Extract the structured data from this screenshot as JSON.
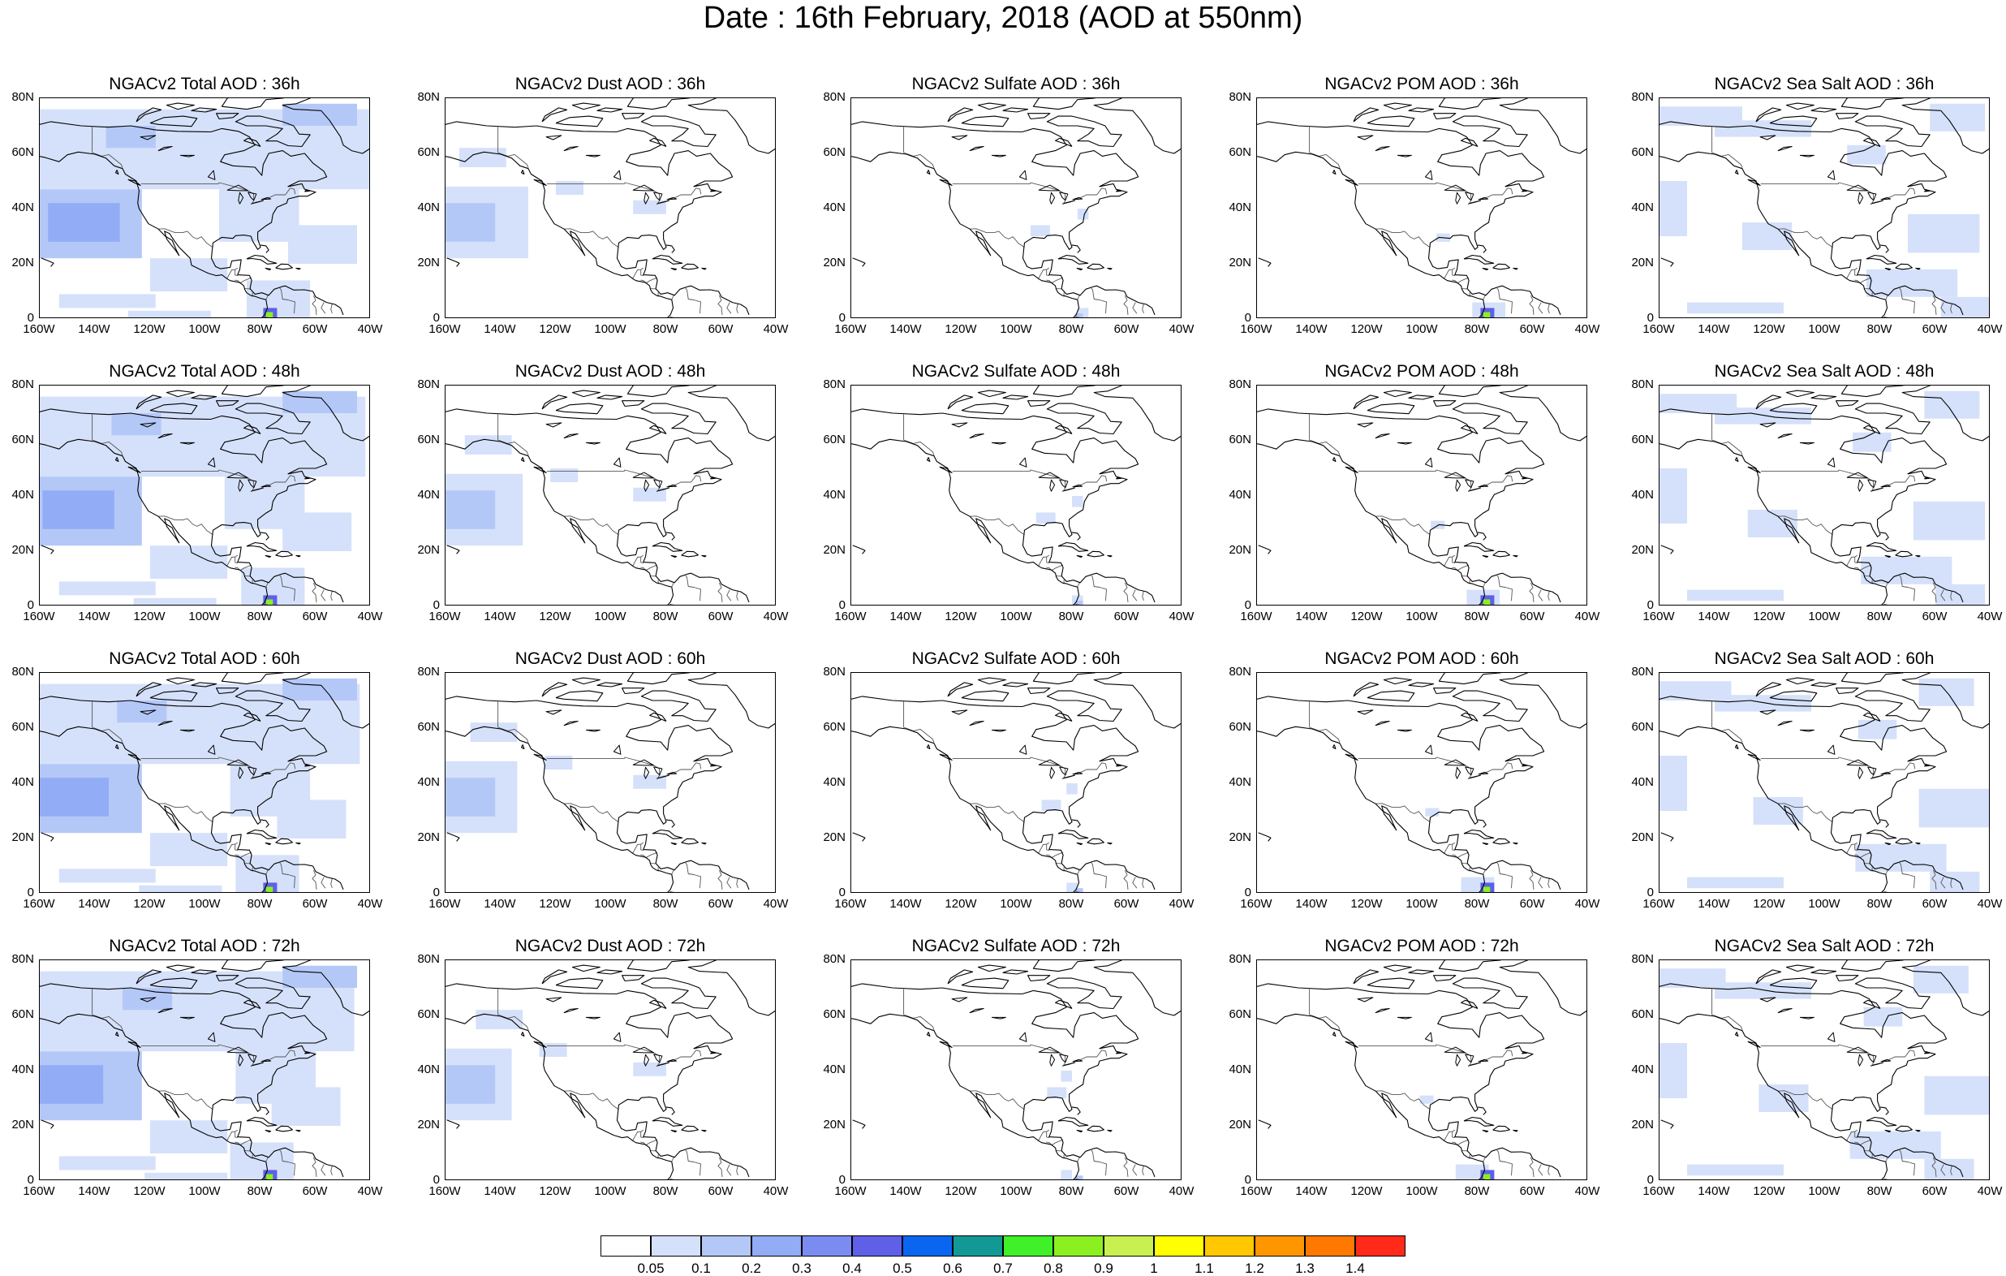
{
  "title": "Date : 16th February, 2018 (AOD at 550nm)",
  "lat_labels": [
    "80N",
    "60N",
    "40N",
    "20N",
    "0"
  ],
  "lon_labels": [
    "160W",
    "140W",
    "120W",
    "100W",
    "80W",
    "60W",
    "40W"
  ],
  "panels": [
    {
      "title": "NGACv2 Total AOD : 36h",
      "species": "total",
      "forecast_hour": 36
    },
    {
      "title": "NGACv2 Dust AOD : 36h",
      "species": "dust",
      "forecast_hour": 36
    },
    {
      "title": "NGACv2 Sulfate AOD : 36h",
      "species": "sulfate",
      "forecast_hour": 36
    },
    {
      "title": "NGACv2 POM AOD : 36h",
      "species": "pom",
      "forecast_hour": 36
    },
    {
      "title": "NGACv2 Sea Salt AOD : 36h",
      "species": "seasalt",
      "forecast_hour": 36
    },
    {
      "title": "NGACv2 Total AOD : 48h",
      "species": "total",
      "forecast_hour": 48
    },
    {
      "title": "NGACv2 Dust AOD : 48h",
      "species": "dust",
      "forecast_hour": 48
    },
    {
      "title": "NGACv2 Sulfate AOD : 48h",
      "species": "sulfate",
      "forecast_hour": 48
    },
    {
      "title": "NGACv2 POM AOD : 48h",
      "species": "pom",
      "forecast_hour": 48
    },
    {
      "title": "NGACv2 Sea Salt AOD : 48h",
      "species": "seasalt",
      "forecast_hour": 48
    },
    {
      "title": "NGACv2 Total AOD : 60h",
      "species": "total",
      "forecast_hour": 60
    },
    {
      "title": "NGACv2 Dust AOD : 60h",
      "species": "dust",
      "forecast_hour": 60
    },
    {
      "title": "NGACv2 Sulfate AOD : 60h",
      "species": "sulfate",
      "forecast_hour": 60
    },
    {
      "title": "NGACv2 POM AOD : 60h",
      "species": "pom",
      "forecast_hour": 60
    },
    {
      "title": "NGACv2 Sea Salt AOD : 60h",
      "species": "seasalt",
      "forecast_hour": 60
    },
    {
      "title": "NGACv2 Total AOD : 72h",
      "species": "total",
      "forecast_hour": 72
    },
    {
      "title": "NGACv2 Dust AOD : 72h",
      "species": "dust",
      "forecast_hour": 72
    },
    {
      "title": "NGACv2 Sulfate AOD : 72h",
      "species": "sulfate",
      "forecast_hour": 72
    },
    {
      "title": "NGACv2 POM AOD : 72h",
      "species": "pom",
      "forecast_hour": 72
    },
    {
      "title": "NGACv2 Sea Salt  AOD : 72h",
      "species": "seasalt",
      "forecast_hour": 72
    }
  ],
  "colorbar": {
    "colors": [
      "#ffffff",
      "#d5e1fa",
      "#b4c8f8",
      "#92acf5",
      "#7b8cf0",
      "#5f5fe8",
      "#0a66f0",
      "#129996",
      "#40f028",
      "#8cf020",
      "#c8f050",
      "#ffff00",
      "#ffc800",
      "#ff9600",
      "#ff7800",
      "#ff2a1a"
    ],
    "labels": [
      "0.05",
      "0.1",
      "0.2",
      "0.3",
      "0.4",
      "0.5",
      "0.6",
      "0.7",
      "0.8",
      "0.9",
      "1",
      "1.1",
      "1.2",
      "1.3",
      "1.4"
    ]
  }
}
